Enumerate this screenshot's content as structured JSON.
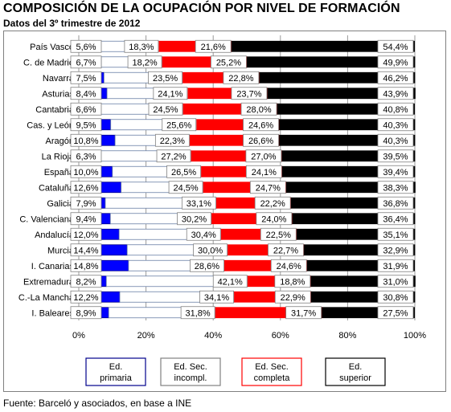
{
  "title": "COMPOSICIÓN DE LA OCUPACIÓN POR NIVEL DE FORMACIÓN",
  "subtitle": "Datos del 3º trimestre de 2012",
  "footer": "Fuente: Barceló y asociados, en base a INE",
  "chart_data": {
    "type": "bar",
    "orientation": "horizontal",
    "stacked": "percent",
    "categories": [
      "País Vasco",
      "C. de Madrid",
      "Navarra",
      "Asturias",
      "Cantabria",
      "Cas. y León",
      "Aragón",
      "La Rioja",
      "España",
      "Cataluña",
      "Galicia",
      "C. Valenciana",
      "Andalucía",
      "Murcia",
      "I. Canarias",
      "Extremadura",
      "C.-La Mancha",
      "I. Baleares"
    ],
    "series": [
      {
        "name": "Ed. primaria",
        "color": "#0000ff",
        "border": "#00008b",
        "values": [
          5.6,
          6.7,
          7.5,
          8.4,
          6.6,
          9.5,
          10.8,
          6.3,
          10.0,
          12.6,
          7.9,
          9.4,
          12.0,
          14.4,
          14.8,
          8.2,
          12.2,
          8.9
        ]
      },
      {
        "name": "Ed. Sec. incompl.",
        "color": "#ffffff",
        "border": "#6a7fa6",
        "values": [
          18.3,
          18.2,
          23.5,
          24.1,
          24.5,
          25.6,
          22.3,
          27.2,
          26.5,
          24.5,
          33.1,
          30.2,
          30.4,
          30.0,
          28.6,
          42.1,
          34.1,
          31.8
        ]
      },
      {
        "name": "Ed. Sec. completa",
        "color": "#ff0000",
        "border": "#ff0000",
        "values": [
          21.6,
          25.2,
          22.8,
          23.7,
          28.0,
          24.6,
          26.6,
          27.0,
          24.1,
          24.7,
          22.2,
          24.0,
          22.5,
          22.7,
          24.6,
          18.8,
          22.9,
          31.7
        ]
      },
      {
        "name": "Ed. superior",
        "color": "#000000",
        "border": "#000000",
        "values": [
          54.4,
          49.9,
          46.2,
          43.9,
          40.8,
          40.3,
          40.3,
          39.5,
          39.4,
          38.3,
          36.8,
          36.4,
          35.1,
          32.9,
          31.9,
          31.0,
          30.8,
          27.5
        ]
      }
    ],
    "labels": [
      [
        "5,6%",
        "18,3%",
        "21,6%",
        "54,4%"
      ],
      [
        "6,7%",
        "18,2%",
        "25,2%",
        "49,9%"
      ],
      [
        "7,5%",
        "23,5%",
        "22,8%",
        "46,2%"
      ],
      [
        "8,4%",
        "24,1%",
        "23,7%",
        "43,9%"
      ],
      [
        "6,6%",
        "24,5%",
        "28,0%",
        "40,8%"
      ],
      [
        "9,5%",
        "25,6%",
        "24,6%",
        "40,3%"
      ],
      [
        "10,8%",
        "22,3%",
        "26,6%",
        "40,3%"
      ],
      [
        "6,3%",
        "27,2%",
        "27,0%",
        "39,5%"
      ],
      [
        "10,0%",
        "26,5%",
        "24,1%",
        "39,4%"
      ],
      [
        "12,6%",
        "24,5%",
        "24,7%",
        "38,3%"
      ],
      [
        "7,9%",
        "33,1%",
        "22,2%",
        "36,8%"
      ],
      [
        "9,4%",
        "30,2%",
        "24,0%",
        "36,4%"
      ],
      [
        "12,0%",
        "30,4%",
        "22,5%",
        "35,1%"
      ],
      [
        "14,4%",
        "30,0%",
        "22,7%",
        "32,9%"
      ],
      [
        "14,8%",
        "28,6%",
        "24,6%",
        "31,9%"
      ],
      [
        "8,2%",
        "42,1%",
        "18,8%",
        "31,0%"
      ],
      [
        "12,2%",
        "34,1%",
        "22,9%",
        "30,8%"
      ],
      [
        "8,9%",
        "31,8%",
        "31,7%",
        "27,5%"
      ]
    ],
    "xlim": [
      0,
      100
    ],
    "xticks": [
      "0%",
      "20%",
      "40%",
      "60%",
      "80%",
      "100%"
    ],
    "grid": true,
    "legend_position": "bottom",
    "legend": [
      {
        "line1": "Ed.",
        "line2": "primaria",
        "border": "#00008b"
      },
      {
        "line1": "Ed. Sec.",
        "line2": "incompl.",
        "border": "#808080"
      },
      {
        "line1": "Ed. Sec.",
        "line2": "completa",
        "border": "#ff0000"
      },
      {
        "line1": "Ed.",
        "line2": "superior",
        "border": "#000000"
      }
    ]
  }
}
